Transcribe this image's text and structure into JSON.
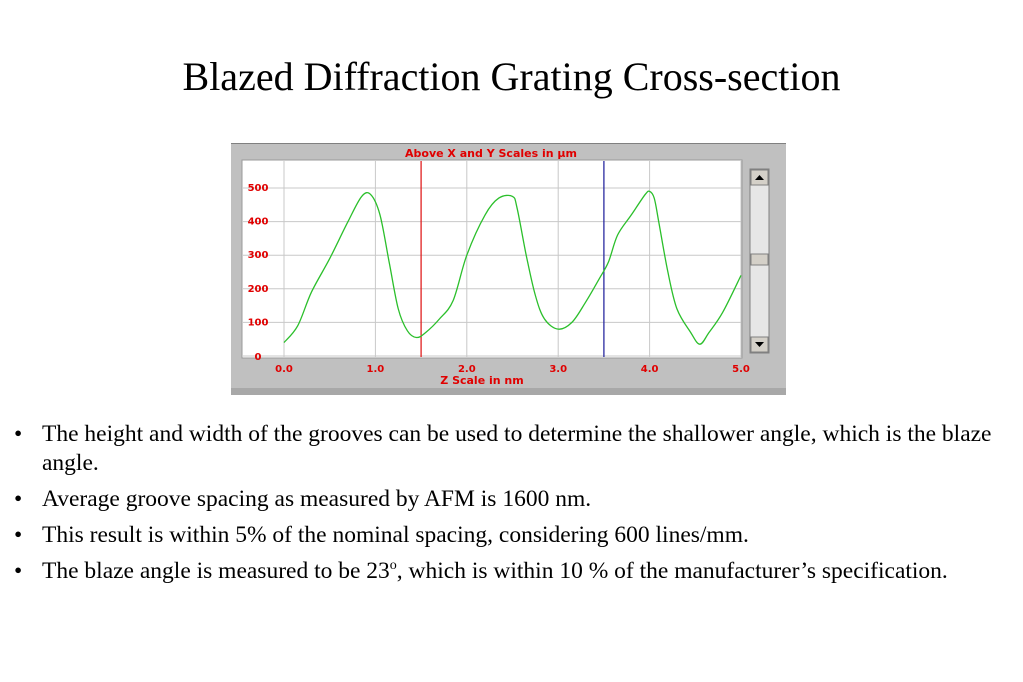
{
  "slide": {
    "title": "Blazed Diffraction Grating Cross-section"
  },
  "chart_data": {
    "type": "line",
    "title": "Above X and Y Scales in µm",
    "xlabel": "Z Scale in nm",
    "ylabel": "",
    "xlim": [
      0,
      5.0
    ],
    "ylim": [
      0,
      550
    ],
    "x_ticks": [
      "0.0",
      "1.0",
      "2.0",
      "3.0",
      "4.0",
      "5.0"
    ],
    "y_ticks": [
      "0",
      "100",
      "200",
      "300",
      "400",
      "500"
    ],
    "grid": true,
    "series": [
      {
        "color": "#2bbf2b",
        "x": [
          0.0,
          0.15,
          0.3,
          0.5,
          0.7,
          0.85,
          0.95,
          1.05,
          1.15,
          1.25,
          1.35,
          1.45,
          1.55,
          1.7,
          1.85,
          2.0,
          2.2,
          2.35,
          2.5,
          2.55,
          2.65,
          2.75,
          2.85,
          3.0,
          3.15,
          3.3,
          3.45,
          3.55,
          3.65,
          3.8,
          3.95,
          4.0,
          4.05,
          4.1,
          4.2,
          4.3,
          4.45,
          4.55,
          4.65,
          4.8,
          5.0
        ],
        "y": [
          40,
          90,
          190,
          290,
          400,
          475,
          480,
          420,
          280,
          140,
          75,
          55,
          70,
          110,
          165,
          300,
          420,
          470,
          475,
          440,
          300,
          180,
          110,
          80,
          100,
          160,
          230,
          280,
          360,
          420,
          480,
          490,
          470,
          400,
          250,
          140,
          70,
          35,
          70,
          130,
          240
        ]
      }
    ],
    "markers": [
      {
        "x": 1.5,
        "color": "#e02020"
      },
      {
        "x": 3.5,
        "color": "#2a2aa0"
      }
    ]
  },
  "bullets": [
    "The height and width of the grooves can be used to determine the shallower angle, which is the blaze angle.",
    "Average groove spacing as measured by AFM is 1600 nm.",
    "This result is within 5% of the nominal spacing, considering 600 lines/mm."
  ],
  "bullet4": {
    "before": "The blaze angle is measured to be 23",
    "sup": "o",
    "after": ", which is within 10 % of the manufacturer’s specification."
  },
  "colors": {
    "panel_bg": "#c0c0c0",
    "plot_bg": "#ffffff",
    "grid": "#c8c8c8",
    "label_red": "#e00000",
    "line_green": "#2bbf2b"
  }
}
